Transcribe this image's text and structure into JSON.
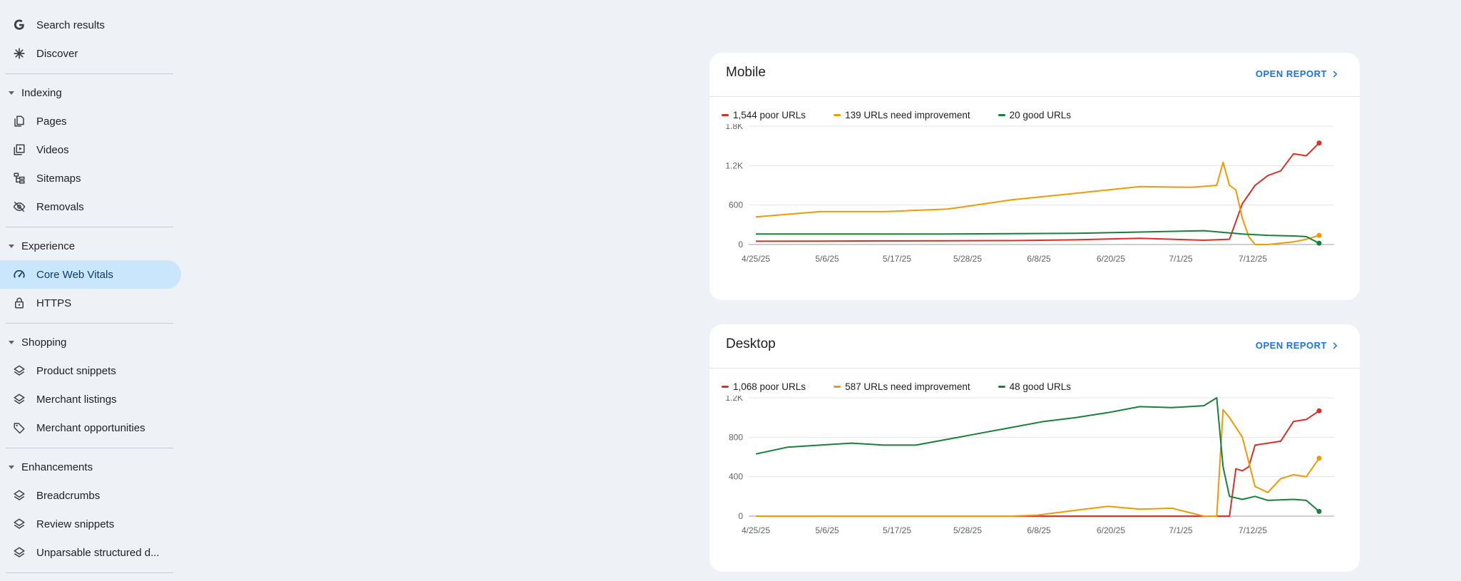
{
  "sidebar": {
    "items_top": [
      {
        "label": "Search results",
        "icon": "google-g-icon"
      },
      {
        "label": "Discover",
        "icon": "asterisk-icon"
      }
    ],
    "sections": [
      {
        "label": "Indexing",
        "items": [
          {
            "label": "Pages",
            "icon": "pages-icon"
          },
          {
            "label": "Videos",
            "icon": "video-icon"
          },
          {
            "label": "Sitemaps",
            "icon": "sitemap-icon"
          },
          {
            "label": "Removals",
            "icon": "eye-off-icon"
          }
        ]
      },
      {
        "label": "Experience",
        "items": [
          {
            "label": "Core Web Vitals",
            "icon": "gauge-icon",
            "active": true
          },
          {
            "label": "HTTPS",
            "icon": "lock-icon"
          }
        ]
      },
      {
        "label": "Shopping",
        "items": [
          {
            "label": "Product snippets",
            "icon": "layers-icon"
          },
          {
            "label": "Merchant listings",
            "icon": "layers-icon"
          },
          {
            "label": "Merchant opportunities",
            "icon": "tag-icon"
          }
        ]
      },
      {
        "label": "Enhancements",
        "items": [
          {
            "label": "Breadcrumbs",
            "icon": "layers-icon"
          },
          {
            "label": "Review snippets",
            "icon": "layers-icon"
          },
          {
            "label": "Unparsable structured d...",
            "icon": "layers-icon"
          }
        ]
      }
    ]
  },
  "colors": {
    "poor": "#d93025",
    "needs": "#f29900",
    "good": "#188038",
    "accent": "#1a73e8",
    "active_bg": "#c9e6fd"
  },
  "cards": [
    {
      "title": "Mobile",
      "open_report": "OPEN REPORT",
      "legend": [
        "1,544 poor URLs",
        "139 URLs need improvement",
        "20 good URLs"
      ]
    },
    {
      "title": "Desktop",
      "open_report": "OPEN REPORT",
      "legend": [
        "1,068 poor URLs",
        "587 URLs need improvement",
        "48 good URLs"
      ]
    }
  ],
  "chart_data": [
    {
      "type": "line",
      "title": "Mobile",
      "x_tick_labels": [
        "4/25/25",
        "5/6/25",
        "5/17/25",
        "5/28/25",
        "6/8/25",
        "6/20/25",
        "7/1/25",
        "7/12/25"
      ],
      "x_range": [
        "4/25/25",
        "7/22/25"
      ],
      "ylim": [
        0,
        1800
      ],
      "y_ticks": [
        0,
        600,
        1200,
        1800
      ],
      "y_tick_labels": [
        "0",
        "600",
        "1.2K",
        "1.8K"
      ],
      "grid": true,
      "legend_position": "top-left",
      "series": [
        {
          "name": "1,544 poor URLs",
          "color": "#d93025",
          "x": [
            0,
            10,
            20,
            30,
            40,
            50,
            60,
            70,
            74,
            76,
            78,
            80,
            82,
            84,
            86,
            88
          ],
          "y": [
            50,
            52,
            55,
            58,
            60,
            72,
            95,
            65,
            80,
            620,
            900,
            1050,
            1120,
            1380,
            1350,
            1544
          ]
        },
        {
          "name": "139 URLs need improvement",
          "color": "#f29900",
          "x": [
            0,
            10,
            20,
            30,
            40,
            50,
            60,
            68,
            72,
            73,
            74,
            75,
            76,
            77,
            78,
            80,
            84,
            86,
            88
          ],
          "y": [
            420,
            500,
            500,
            540,
            680,
            780,
            880,
            870,
            900,
            1250,
            900,
            830,
            400,
            120,
            0,
            0,
            40,
            80,
            139
          ]
        },
        {
          "name": "20 good URLs",
          "color": "#188038",
          "x": [
            0,
            10,
            20,
            30,
            40,
            50,
            60,
            70,
            76,
            80,
            84,
            86,
            88
          ],
          "y": [
            160,
            160,
            160,
            160,
            165,
            170,
            190,
            210,
            160,
            140,
            130,
            120,
            20
          ]
        }
      ]
    },
    {
      "type": "line",
      "title": "Desktop",
      "x_tick_labels": [
        "4/25/25",
        "5/6/25",
        "5/17/25",
        "5/28/25",
        "6/8/25",
        "6/20/25",
        "7/1/25",
        "7/12/25"
      ],
      "x_range": [
        "4/25/25",
        "7/22/25"
      ],
      "ylim": [
        0,
        1200
      ],
      "y_ticks": [
        0,
        400,
        800,
        1200
      ],
      "y_tick_labels": [
        "0",
        "400",
        "800",
        "1.2K"
      ],
      "grid": true,
      "legend_position": "top-left",
      "series": [
        {
          "name": "1,068 poor URLs",
          "color": "#d93025",
          "x": [
            0,
            10,
            20,
            30,
            40,
            50,
            60,
            73,
            74,
            75,
            76,
            77,
            78,
            80,
            82,
            84,
            86,
            88
          ],
          "y": [
            0,
            0,
            0,
            0,
            0,
            0,
            0,
            0,
            0,
            480,
            460,
            500,
            720,
            740,
            760,
            960,
            980,
            1068
          ]
        },
        {
          "name": "587 URLs need improvement",
          "color": "#f29900",
          "x": [
            0,
            10,
            20,
            30,
            40,
            44,
            50,
            55,
            60,
            65,
            70,
            72,
            73,
            74,
            76,
            78,
            80,
            82,
            84,
            86,
            88
          ],
          "y": [
            0,
            0,
            0,
            0,
            0,
            10,
            60,
            100,
            70,
            80,
            0,
            0,
            1080,
            1000,
            800,
            300,
            240,
            380,
            420,
            400,
            587
          ]
        },
        {
          "name": "48 good URLs",
          "color": "#188038",
          "x": [
            0,
            5,
            10,
            15,
            20,
            25,
            30,
            35,
            40,
            45,
            50,
            55,
            60,
            65,
            70,
            72,
            73,
            74,
            76,
            78,
            80,
            84,
            86,
            88
          ],
          "y": [
            630,
            700,
            720,
            740,
            720,
            720,
            780,
            840,
            900,
            960,
            1000,
            1050,
            1110,
            1100,
            1120,
            1200,
            500,
            200,
            170,
            200,
            160,
            170,
            160,
            48
          ]
        }
      ]
    }
  ]
}
